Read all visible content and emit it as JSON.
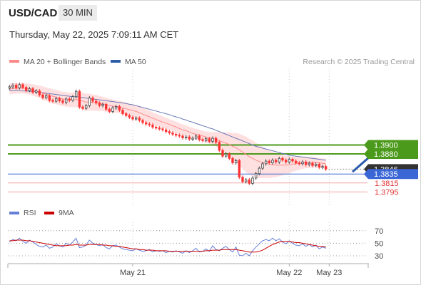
{
  "header": {
    "symbol": "USD/CAD",
    "timeframe": "30 MIN",
    "datetime": "Thursday, May 22, 2025 7:09:11 AM CET"
  },
  "colors": {
    "price_up": "#444444",
    "price_down": "#ff3333",
    "ma20": "#ff8a8a",
    "bollinger_fill": "#ffd6d6",
    "ma50": "#6a7ab8",
    "resistance": "#4c9a1c",
    "support": "#3a66d6",
    "lower_line": "#f2a5a5",
    "rsi": "#6680d8",
    "rsi_ma": "#cc0000",
    "arrow": "#2a5aa8",
    "current_price_bg": "#333333"
  },
  "chart_data": [
    {
      "type": "candlestick",
      "legend": [
        {
          "name": "MA 20 + Bollinger Bands",
          "color": "#ff8a8a"
        },
        {
          "name": "MA 50",
          "color": "#2e5ca8"
        }
      ],
      "copyright": "Research © 2025 Trading Central",
      "ylim": [
        1.377,
        1.4065
      ],
      "x_ticks": [
        {
          "label": "May 21",
          "index": 37
        },
        {
          "label": "May 22",
          "index": 84
        },
        {
          "label": "May 23",
          "index": 96
        }
      ],
      "x_count": 108,
      "levels": [
        {
          "value": 1.39,
          "label": "1.3900",
          "kind": "resistance"
        },
        {
          "value": 1.388,
          "label": "1.3880",
          "kind": "resistance"
        },
        {
          "value": 1.3846,
          "label": "1.3846",
          "kind": "current"
        },
        {
          "value": 1.3835,
          "label": "1.3835",
          "kind": "support"
        },
        {
          "value": 1.3815,
          "label": "1.3815",
          "kind": "target"
        },
        {
          "value": 1.3795,
          "label": "1.3795",
          "kind": "target"
        }
      ],
      "close": [
        1.403,
        1.4034,
        1.4028,
        1.4035,
        1.4029,
        1.4022,
        1.4026,
        1.4018,
        1.4021,
        1.4012,
        1.4006,
        1.401,
        1.4,
        1.3998,
        1.4004,
        1.3999,
        1.3995,
        1.4003,
        1.4,
        1.4008,
        1.402,
        1.3985,
        1.3982,
        1.3988,
        1.4005,
        1.3998,
        1.3994,
        1.3988,
        1.3991,
        1.398,
        1.3975,
        1.3983,
        1.3986,
        1.3978,
        1.397,
        1.3966,
        1.3962,
        1.3958,
        1.396,
        1.3955,
        1.395,
        1.3947,
        1.3945,
        1.394,
        1.3938,
        1.3936,
        1.3934,
        1.393,
        1.3927,
        1.3924,
        1.3922,
        1.392,
        1.3916,
        1.3918,
        1.3913,
        1.3915,
        1.392,
        1.3912,
        1.391,
        1.3914,
        1.3908,
        1.3915,
        1.3906,
        1.3888,
        1.3875,
        1.388,
        1.387,
        1.386,
        1.3865,
        1.3828,
        1.3818,
        1.3822,
        1.3814,
        1.3826,
        1.3836,
        1.3848,
        1.3858,
        1.3864,
        1.386,
        1.3866,
        1.3862,
        1.387,
        1.3866,
        1.3862,
        1.3868,
        1.3864,
        1.386,
        1.3858,
        1.3862,
        1.3856,
        1.3859,
        1.3854,
        1.3857,
        1.385,
        1.3852,
        1.3846
      ],
      "ma20": [
        1.4025,
        1.4026,
        1.4027,
        1.4027,
        1.4027,
        1.4026,
        1.4025,
        1.4023,
        1.4021,
        1.4019,
        1.4016,
        1.4014,
        1.4011,
        1.4009,
        1.4007,
        1.4005,
        1.4003,
        1.4002,
        1.4001,
        1.4001,
        1.4002,
        1.4,
        1.3998,
        1.3996,
        1.3996,
        1.3995,
        1.3994,
        1.3993,
        1.3992,
        1.399,
        1.3988,
        1.3987,
        1.3986,
        1.3985,
        1.3983,
        1.3981,
        1.3979,
        1.3977,
        1.3975,
        1.3972,
        1.3969,
        1.3966,
        1.3963,
        1.396,
        1.3957,
        1.3954,
        1.3951,
        1.3949,
        1.3946,
        1.3943,
        1.394,
        1.3937,
        1.3934,
        1.3932,
        1.3929,
        1.3926,
        1.3924,
        1.3922,
        1.392,
        1.3918,
        1.3916,
        1.3915,
        1.3913,
        1.391,
        1.3907,
        1.3904,
        1.3901,
        1.3897,
        1.3894,
        1.3889,
        1.3884,
        1.3879,
        1.3874,
        1.387,
        1.3866,
        1.3863,
        1.3861,
        1.3859,
        1.3857,
        1.3856,
        1.3855,
        1.3855,
        1.3855,
        1.3855,
        1.3856,
        1.3857,
        1.3858,
        1.3859,
        1.386,
        1.3861,
        1.3861,
        1.3861,
        1.3861,
        1.386,
        1.3859,
        1.3858
      ],
      "ma50": [
        1.4022,
        1.4022,
        1.4022,
        1.4022,
        1.4021,
        1.4021,
        1.402,
        1.402,
        1.4019,
        1.4018,
        1.4017,
        1.4016,
        1.4015,
        1.4014,
        1.4013,
        1.4012,
        1.4011,
        1.401,
        1.4009,
        1.4008,
        1.4008,
        1.4007,
        1.4006,
        1.4005,
        1.4004,
        1.4003,
        1.4002,
        1.4001,
        1.4,
        1.3999,
        1.3998,
        1.3997,
        1.3996,
        1.3995,
        1.3994,
        1.3993,
        1.3991,
        1.399,
        1.3988,
        1.3986,
        1.3984,
        1.3982,
        1.398,
        1.3978,
        1.3976,
        1.3974,
        1.3972,
        1.397,
        1.3968,
        1.3965,
        1.3963,
        1.3961,
        1.3958,
        1.3956,
        1.3953,
        1.3951,
        1.3948,
        1.3946,
        1.3943,
        1.3941,
        1.3938,
        1.3936,
        1.3933,
        1.393,
        1.3927,
        1.3924,
        1.3921,
        1.3918,
        1.3915,
        1.3912,
        1.3909,
        1.3906,
        1.3903,
        1.39,
        1.3897,
        1.3895,
        1.3893,
        1.3891,
        1.3889,
        1.3887,
        1.3885,
        1.3883,
        1.3881,
        1.3879,
        1.3877,
        1.3876,
        1.3875,
        1.3874,
        1.3873,
        1.3872,
        1.3871,
        1.387,
        1.3869,
        1.3868,
        1.3867,
        1.3866
      ],
      "band_width": [
        0.0012,
        0.0012,
        0.0012,
        0.0012,
        0.0012,
        0.0012,
        0.0012,
        0.0013,
        0.0013,
        0.0014,
        0.0015,
        0.0015,
        0.0016,
        0.0016,
        0.0016,
        0.0016,
        0.0016,
        0.0016,
        0.0016,
        0.0016,
        0.0017,
        0.0018,
        0.0019,
        0.0019,
        0.0019,
        0.0018,
        0.0018,
        0.0017,
        0.0016,
        0.0016,
        0.0015,
        0.0015,
        0.0014,
        0.0014,
        0.0014,
        0.0014,
        0.0014,
        0.0014,
        0.0014,
        0.0014,
        0.0014,
        0.0014,
        0.0014,
        0.0013,
        0.0013,
        0.0013,
        0.0013,
        0.0012,
        0.0012,
        0.0012,
        0.0012,
        0.0012,
        0.0012,
        0.0012,
        0.0012,
        0.0012,
        0.0012,
        0.0012,
        0.0012,
        0.0012,
        0.0013,
        0.0014,
        0.0016,
        0.0018,
        0.0021,
        0.0024,
        0.0027,
        0.003,
        0.0033,
        0.0036,
        0.0038,
        0.004,
        0.004,
        0.004,
        0.0039,
        0.0037,
        0.0035,
        0.0033,
        0.0031,
        0.0029,
        0.0027,
        0.0025,
        0.0023,
        0.0021,
        0.0019,
        0.0017,
        0.0016,
        0.0015,
        0.0014,
        0.0013,
        0.0012,
        0.0012,
        0.0011,
        0.0011,
        0.0011,
        0.0011
      ],
      "projection": {
        "from_index": 103,
        "from_value": 1.384,
        "to_index": 111,
        "to_value": 1.3892
      }
    },
    {
      "type": "line",
      "legend": [
        {
          "name": "RSI",
          "color": "#6680d8"
        },
        {
          "name": "9MA",
          "color": "#cc0000"
        }
      ],
      "ylim": [
        22,
        80
      ],
      "y_ticks": [
        70,
        50,
        30
      ],
      "rsi": [
        52,
        56,
        54,
        58,
        53,
        50,
        55,
        52,
        48,
        45,
        44,
        47,
        42,
        44,
        49,
        46,
        44,
        50,
        47,
        52,
        58,
        43,
        44,
        47,
        55,
        50,
        48,
        46,
        48,
        43,
        41,
        46,
        47,
        44,
        41,
        40,
        39,
        38,
        41,
        39,
        37,
        38,
        40,
        36,
        38,
        37,
        38,
        35,
        37,
        36,
        38,
        36,
        34,
        38,
        35,
        38,
        42,
        36,
        37,
        41,
        37,
        46,
        40,
        38,
        42,
        45,
        40,
        36,
        44,
        31,
        30,
        34,
        30,
        38,
        44,
        49,
        54,
        56,
        54,
        58,
        54,
        57,
        52,
        49,
        54,
        50,
        47,
        46,
        49,
        45,
        48,
        44,
        47,
        41,
        44,
        42
      ],
      "rsi_ma": [
        54,
        54,
        55,
        55,
        55,
        54,
        54,
        53,
        52,
        51,
        50,
        49,
        48,
        47,
        46,
        46,
        46,
        46,
        47,
        47,
        48,
        47,
        47,
        47,
        48,
        48,
        48,
        48,
        47,
        47,
        46,
        46,
        45,
        45,
        44,
        43,
        42,
        41,
        41,
        40,
        40,
        39,
        39,
        39,
        38,
        38,
        38,
        38,
        37,
        37,
        37,
        37,
        37,
        37,
        37,
        37,
        37,
        37,
        37,
        38,
        38,
        39,
        39,
        39,
        40,
        40,
        40,
        40,
        40,
        39,
        38,
        37,
        36,
        36,
        36,
        37,
        39,
        42,
        45,
        48,
        50,
        52,
        53,
        53,
        53,
        52,
        51,
        51,
        50,
        49,
        48,
        47,
        46,
        45,
        45,
        44
      ]
    }
  ]
}
